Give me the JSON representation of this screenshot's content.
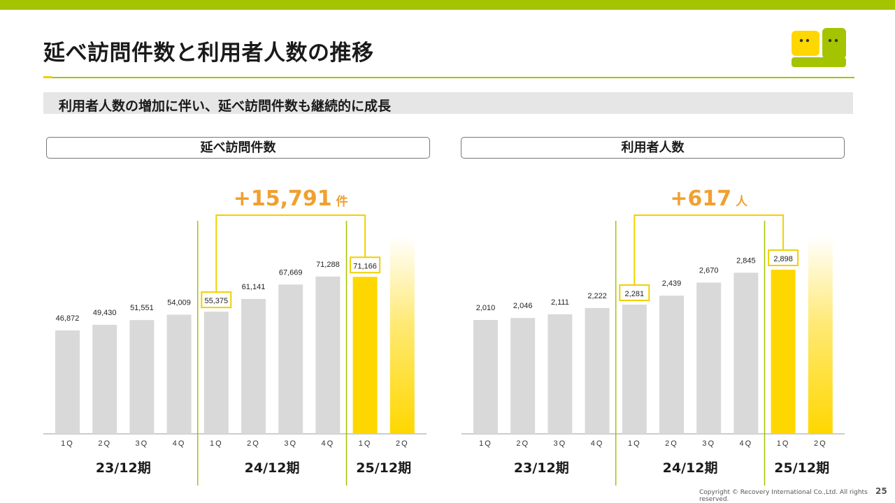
{
  "page": {
    "title": "延べ訪問件数と利用者人数の推移",
    "subtitle": "利用者人数の増加に伴い、延べ訪問件数も継続的に成長",
    "copyright": "Copyright © Recovery International Co.,Ltd. All rights reserved.",
    "page_number": "25"
  },
  "colors": {
    "accent_green": "#a5c400",
    "bar_gray": "#d9d9d9",
    "bar_yellow": "#ffd700",
    "highlight_gold": "#f0d000",
    "delta_orange": "#f0a030"
  },
  "chart_data": [
    {
      "type": "bar",
      "title": "延べ訪問件数",
      "categories": [
        "1Q",
        "2Q",
        "3Q",
        "4Q",
        "1Q",
        "2Q",
        "3Q",
        "4Q",
        "1Q",
        "2Q"
      ],
      "periods": [
        {
          "label": "23/12期",
          "start": 0,
          "end": 3
        },
        {
          "label": "24/12期",
          "start": 4,
          "end": 7
        },
        {
          "label": "25/12期",
          "start": 8,
          "end": 9
        }
      ],
      "values": [
        46872,
        49430,
        51551,
        54009,
        55375,
        61141,
        67669,
        71288,
        71166,
        null
      ],
      "value_labels": [
        "46,872",
        "49,430",
        "51,551",
        "54,009",
        "55,375",
        "61,141",
        "67,669",
        "71,288",
        "71,166",
        ""
      ],
      "ylim": [
        0,
        95000
      ],
      "highlighted": [
        4,
        8
      ],
      "highlight_bar": 8,
      "forecast_bar": 9,
      "delta": {
        "value": "+15,791",
        "unit": "件",
        "from": 4,
        "to": 8
      }
    },
    {
      "type": "bar",
      "title": "利用者人数",
      "categories": [
        "1Q",
        "2Q",
        "3Q",
        "4Q",
        "1Q",
        "2Q",
        "3Q",
        "4Q",
        "1Q",
        "2Q"
      ],
      "periods": [
        {
          "label": "23/12期",
          "start": 0,
          "end": 3
        },
        {
          "label": "24/12期",
          "start": 4,
          "end": 7
        },
        {
          "label": "25/12期",
          "start": 8,
          "end": 9
        }
      ],
      "values": [
        2010,
        2046,
        2111,
        2222,
        2281,
        2439,
        2670,
        2845,
        2898,
        null
      ],
      "value_labels": [
        "2,010",
        "2,046",
        "2,111",
        "2,222",
        "2,281",
        "2,439",
        "2,670",
        "2,845",
        "2,898",
        ""
      ],
      "ylim": [
        0,
        3700
      ],
      "highlighted": [
        4,
        8
      ],
      "highlight_bar": 8,
      "forecast_bar": 9,
      "delta": {
        "value": "+617",
        "unit": "人",
        "from": 4,
        "to": 8
      }
    }
  ]
}
